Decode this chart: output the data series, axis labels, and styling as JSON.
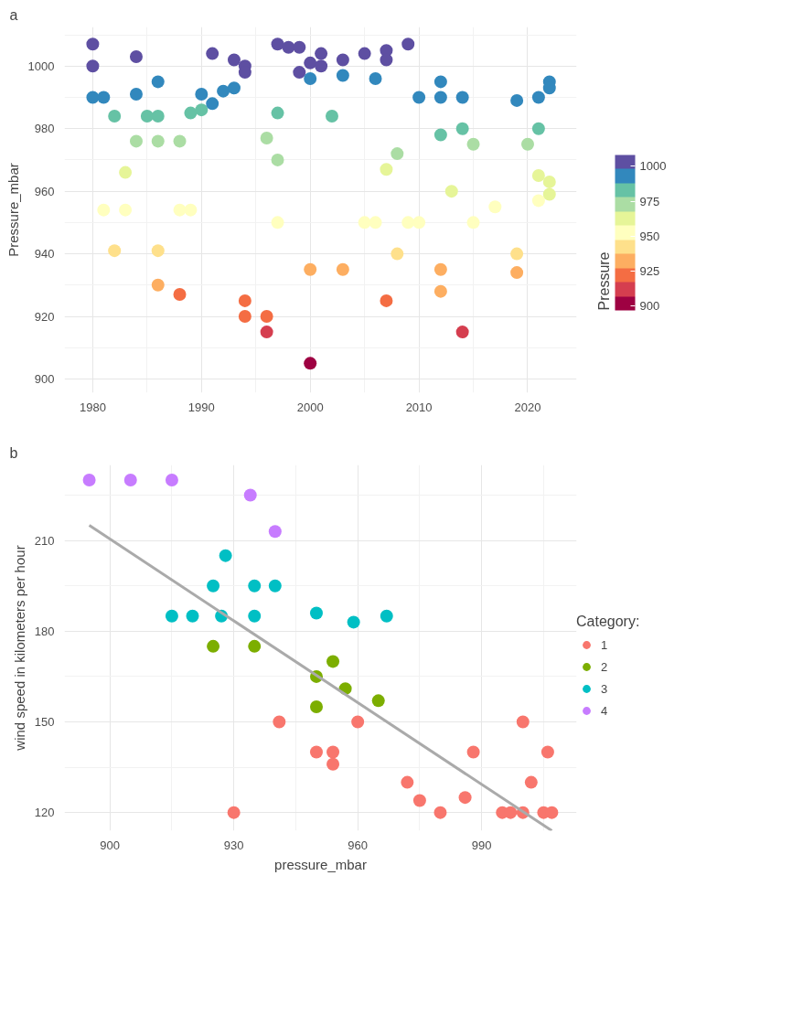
{
  "chart_data": [
    {
      "type": "scatter",
      "annotations": [
        "a"
      ],
      "ylabel": "Pressure_mbar",
      "clabel": "Pressure",
      "marker": "circle",
      "grid": true,
      "xlim": [
        1977.4,
        2024.5
      ],
      "xticks": [
        1980,
        1990,
        2000,
        2010,
        2020
      ],
      "ylim": [
        895.6,
        1012.5
      ],
      "yticks": [
        900,
        920,
        940,
        960,
        980,
        1000
      ],
      "clim": [
        897,
        1008
      ],
      "cticks": [
        900,
        925,
        950,
        975,
        1000
      ],
      "x": [
        1980,
        1980,
        1980,
        1981,
        1982,
        1981,
        1983,
        1982,
        1983,
        1984,
        1984,
        1984,
        1985,
        1986,
        1986,
        1986,
        1986,
        1986,
        1988,
        1988,
        1988,
        1989,
        1989,
        1990,
        1990,
        1991,
        1991,
        1992,
        1993,
        1993,
        1994,
        1994,
        1994,
        1994,
        1996,
        1996,
        1996,
        1997,
        1997,
        1997,
        1997,
        1998,
        1999,
        1999,
        2000,
        2000,
        2000,
        2000,
        2001,
        2001,
        2002,
        2003,
        2003,
        2003,
        2005,
        2005,
        2006,
        2006,
        2007,
        2007,
        2007,
        2007,
        2008,
        2008,
        2009,
        2009,
        2010,
        2010,
        2012,
        2012,
        2012,
        2012,
        2012,
        2013,
        2014,
        2014,
        2014,
        2015,
        2015,
        2017,
        2019,
        2019,
        2019,
        2020,
        2021,
        2021,
        2021,
        2021,
        2022,
        2022,
        2022,
        2022
      ],
      "values": [
        1007,
        1000,
        990,
        990,
        984,
        954,
        954,
        941,
        966,
        1003,
        991,
        976,
        984,
        995,
        984,
        976,
        941,
        930,
        976,
        954,
        927,
        954,
        985,
        991,
        986,
        1004,
        988,
        992,
        1002,
        993,
        1000,
        998,
        925,
        920,
        920,
        915,
        977,
        1007,
        985,
        970,
        950,
        1006,
        1006,
        998,
        1001,
        996,
        905,
        935,
        1004,
        1000,
        984,
        1002,
        997,
        935,
        1004,
        950,
        996,
        950,
        1005,
        1002,
        967,
        925,
        972,
        940,
        1007,
        950,
        990,
        950,
        995,
        990,
        978,
        935,
        928,
        960,
        990,
        980,
        915,
        975,
        950,
        955,
        989,
        940,
        934,
        975,
        990,
        980,
        965,
        957,
        995,
        993,
        963,
        959
      ],
      "cvalues": [
        1007,
        1000,
        990,
        990,
        984,
        954,
        954,
        941,
        966,
        1003,
        991,
        976,
        984,
        995,
        984,
        976,
        941,
        930,
        976,
        954,
        927,
        954,
        985,
        991,
        986,
        1004,
        988,
        992,
        1002,
        993,
        1000,
        998,
        925,
        920,
        920,
        915,
        977,
        1007,
        985,
        970,
        950,
        1006,
        1006,
        998,
        1001,
        996,
        905,
        935,
        1004,
        1000,
        984,
        1002,
        997,
        935,
        1004,
        950,
        996,
        950,
        1005,
        1002,
        967,
        925,
        972,
        940,
        1007,
        950,
        990,
        950,
        995,
        990,
        978,
        935,
        928,
        960,
        990,
        980,
        915,
        975,
        950,
        955,
        989,
        940,
        934,
        975,
        990,
        980,
        965,
        957,
        995,
        993,
        963,
        959
      ]
    },
    {
      "type": "scatter",
      "annotations": [
        "b"
      ],
      "xlabel": "pressure_mbar",
      "ylabel": "wind speed in kilometers per hour",
      "legend_title": "Category:",
      "legend": "right",
      "marker": "circle",
      "grid": true,
      "xlim": [
        889,
        1013
      ],
      "xticks": [
        900,
        930,
        960,
        990
      ],
      "ylim": [
        114,
        235
      ],
      "yticks": [
        120,
        150,
        180,
        210
      ],
      "series": [
        {
          "name": "1",
          "color": "#f8766d",
          "x": [
            941,
            930,
            960,
            950,
            954,
            954,
            972,
            975,
            980,
            986,
            988,
            1000,
            1006,
            1002,
            995,
            997,
            1000,
            1005,
            1007
          ],
          "values": [
            150,
            120,
            150,
            140,
            140,
            136,
            130,
            124,
            120,
            125,
            140,
            150,
            140,
            130,
            120,
            120,
            120,
            120,
            120
          ]
        },
        {
          "name": "2",
          "color": "#7cae00",
          "x": [
            925,
            935,
            954,
            950,
            957,
            965,
            950
          ],
          "values": [
            175,
            175,
            170,
            165,
            161,
            157,
            155
          ]
        },
        {
          "name": "3",
          "color": "#00bfc4",
          "x": [
            928,
            925,
            935,
            940,
            915,
            920,
            927,
            935,
            950,
            959,
            967
          ],
          "values": [
            205,
            195,
            195,
            195,
            185,
            185,
            185,
            185,
            186,
            183,
            185
          ]
        },
        {
          "name": "4",
          "color": "#c77cff",
          "x": [
            895,
            905,
            915,
            934,
            940
          ],
          "values": [
            230,
            230,
            230,
            225,
            213
          ]
        },
        {
          "type": "line",
          "marker": "none",
          "color": "#aaaaaa",
          "x": [
            895,
            1007
          ],
          "values": [
            215,
            114
          ]
        }
      ]
    }
  ]
}
